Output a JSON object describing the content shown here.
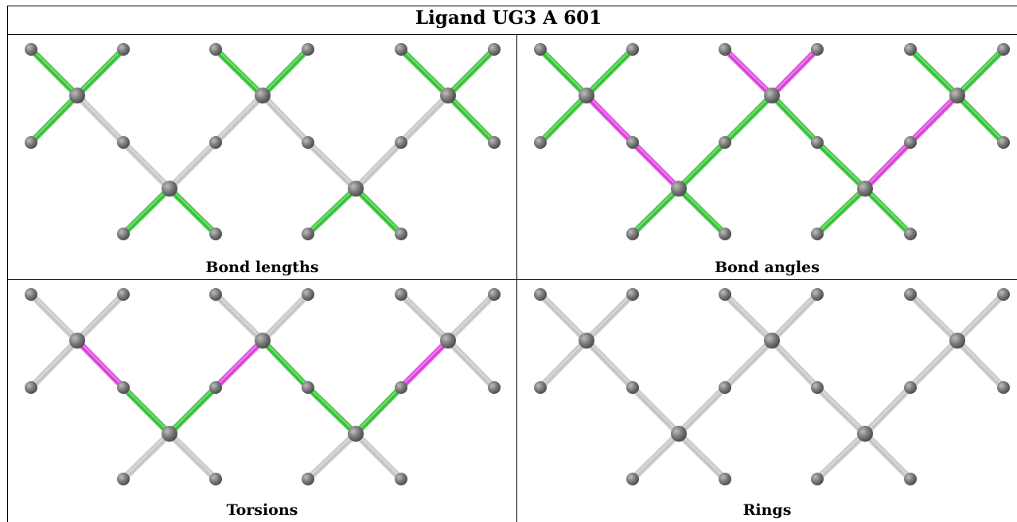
{
  "title": "Ligand UG3 A 601",
  "colors": {
    "atom": "#777777",
    "bond_neutral": "#c6c6c6",
    "bond_good": "#33c733",
    "bond_bad": "#e23fe2"
  },
  "panels": [
    {
      "caption": "Bond lengths",
      "bonds": {
        "a1-l1": "good",
        "a1-u1": "good",
        "a1-u2": "good",
        "a1-l2": "good",
        "a1-b1": "neutral",
        "b1-c1": "neutral",
        "c1-l3": "good",
        "c1-l4": "good",
        "c1-b2": "neutral",
        "b2-a2": "neutral",
        "a2-u3": "good",
        "a2-u4": "good",
        "a2-b3": "neutral",
        "b3-c2": "neutral",
        "c2-l5": "good",
        "c2-l6": "good",
        "c2-b4": "neutral",
        "b4-a3": "neutral",
        "a3-u5": "good",
        "a3-u6": "good",
        "a3-r1": "good",
        "a3-r2": "good"
      }
    },
    {
      "caption": "Bond angles",
      "bonds": {
        "a1-l1": "good",
        "a1-u1": "good",
        "a1-u2": "good",
        "a1-l2": "good",
        "a1-b1": "bad",
        "b1-c1": "bad",
        "c1-l3": "good",
        "c1-l4": "good",
        "c1-b2": "good",
        "b2-a2": "good",
        "a2-u3": "bad",
        "a2-u4": "bad",
        "a2-b3": "good",
        "b3-c2": "good",
        "c2-l5": "good",
        "c2-l6": "good",
        "c2-b4": "bad",
        "b4-a3": "bad",
        "a3-u5": "good",
        "a3-u6": "good",
        "a3-r1": "good",
        "a3-r2": "good"
      }
    },
    {
      "caption": "Torsions",
      "bonds": {
        "a1-l1": "neutral",
        "a1-u1": "neutral",
        "a1-u2": "neutral",
        "a1-l2": "neutral",
        "a1-b1": "bad",
        "b1-c1": "good",
        "c1-l3": "neutral",
        "c1-l4": "neutral",
        "c1-b2": "good",
        "b2-a2": "bad",
        "a2-u3": "neutral",
        "a2-u4": "neutral",
        "a2-b3": "good",
        "b3-c2": "good",
        "c2-l5": "neutral",
        "c2-l6": "neutral",
        "c2-b4": "good",
        "b4-a3": "bad",
        "a3-u5": "neutral",
        "a3-u6": "neutral",
        "a3-r1": "neutral",
        "a3-r2": "neutral"
      }
    },
    {
      "caption": "Rings",
      "bonds": {
        "a1-l1": "neutral",
        "a1-u1": "neutral",
        "a1-u2": "neutral",
        "a1-l2": "neutral",
        "a1-b1": "neutral",
        "b1-c1": "neutral",
        "c1-l3": "neutral",
        "c1-l4": "neutral",
        "c1-b2": "neutral",
        "b2-a2": "neutral",
        "a2-u3": "neutral",
        "a2-u4": "neutral",
        "a2-b3": "neutral",
        "b3-c2": "neutral",
        "c2-l5": "neutral",
        "c2-l6": "neutral",
        "c2-b4": "neutral",
        "b4-a3": "neutral",
        "a3-u5": "neutral",
        "a3-u6": "neutral",
        "a3-r1": "neutral",
        "a3-r2": "neutral"
      }
    }
  ]
}
